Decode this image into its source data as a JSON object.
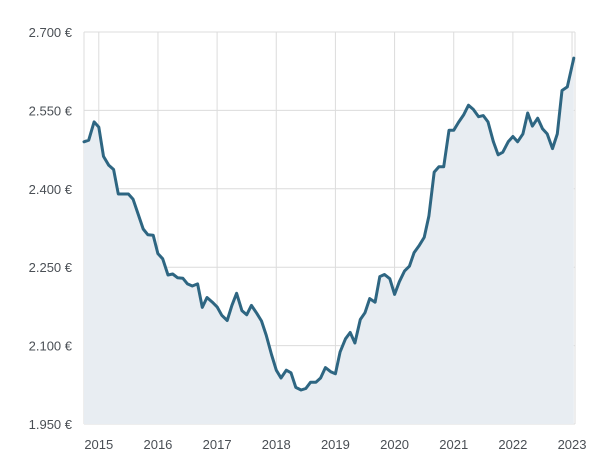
{
  "chart_data": {
    "type": "area",
    "title": "",
    "xlabel": "",
    "ylabel": "",
    "ylim": [
      1950,
      2700
    ],
    "xlim": [
      2014.75,
      2023.05
    ],
    "grid": true,
    "line_color": "#2e6682",
    "fill_color": "#e8edf2",
    "y_ticks": [
      {
        "value": 1950,
        "label": "1.950 €"
      },
      {
        "value": 2100,
        "label": "2.100 €"
      },
      {
        "value": 2250,
        "label": "2.250 €"
      },
      {
        "value": 2400,
        "label": "2.400 €"
      },
      {
        "value": 2550,
        "label": "2.550 €"
      },
      {
        "value": 2700,
        "label": "2.700 €"
      }
    ],
    "x_ticks": [
      {
        "value": 2015,
        "label": "2015"
      },
      {
        "value": 2016,
        "label": "2016"
      },
      {
        "value": 2017,
        "label": "2017"
      },
      {
        "value": 2018,
        "label": "2018"
      },
      {
        "value": 2019,
        "label": "2019"
      },
      {
        "value": 2020,
        "label": "2020"
      },
      {
        "value": 2021,
        "label": "2021"
      },
      {
        "value": 2022,
        "label": "2022"
      },
      {
        "value": 2023,
        "label": "2023"
      }
    ],
    "series": [
      {
        "points": [
          [
            2014.75,
            2490
          ],
          [
            2014.83,
            2493
          ],
          [
            2014.92,
            2528
          ],
          [
            2015.0,
            2518
          ],
          [
            2015.08,
            2462
          ],
          [
            2015.17,
            2445
          ],
          [
            2015.25,
            2437
          ],
          [
            2015.33,
            2390
          ],
          [
            2015.42,
            2390
          ],
          [
            2015.5,
            2390
          ],
          [
            2015.58,
            2380
          ],
          [
            2015.67,
            2350
          ],
          [
            2015.75,
            2323
          ],
          [
            2015.83,
            2312
          ],
          [
            2015.92,
            2311
          ],
          [
            2016.0,
            2276
          ],
          [
            2016.08,
            2266
          ],
          [
            2016.17,
            2235
          ],
          [
            2016.25,
            2237
          ],
          [
            2016.33,
            2230
          ],
          [
            2016.42,
            2229
          ],
          [
            2016.5,
            2218
          ],
          [
            2016.58,
            2214
          ],
          [
            2016.67,
            2218
          ],
          [
            2016.75,
            2173
          ],
          [
            2016.83,
            2192
          ],
          [
            2016.92,
            2183
          ],
          [
            2017.0,
            2174
          ],
          [
            2017.08,
            2158
          ],
          [
            2017.17,
            2148
          ],
          [
            2017.25,
            2177
          ],
          [
            2017.33,
            2200
          ],
          [
            2017.42,
            2167
          ],
          [
            2017.5,
            2159
          ],
          [
            2017.58,
            2177
          ],
          [
            2017.67,
            2162
          ],
          [
            2017.75,
            2147
          ],
          [
            2017.83,
            2120
          ],
          [
            2017.92,
            2083
          ],
          [
            2018.0,
            2053
          ],
          [
            2018.08,
            2038
          ],
          [
            2018.17,
            2053
          ],
          [
            2018.25,
            2048
          ],
          [
            2018.33,
            2020
          ],
          [
            2018.42,
            2015
          ],
          [
            2018.5,
            2018
          ],
          [
            2018.58,
            2030
          ],
          [
            2018.67,
            2030
          ],
          [
            2018.75,
            2038
          ],
          [
            2018.83,
            2058
          ],
          [
            2018.92,
            2050
          ],
          [
            2019.0,
            2046
          ],
          [
            2019.08,
            2088
          ],
          [
            2019.17,
            2113
          ],
          [
            2019.25,
            2125
          ],
          [
            2019.33,
            2105
          ],
          [
            2019.42,
            2150
          ],
          [
            2019.5,
            2163
          ],
          [
            2019.58,
            2190
          ],
          [
            2019.67,
            2183
          ],
          [
            2019.75,
            2232
          ],
          [
            2019.83,
            2236
          ],
          [
            2019.92,
            2228
          ],
          [
            2020.0,
            2198
          ],
          [
            2020.08,
            2222
          ],
          [
            2020.17,
            2243
          ],
          [
            2020.25,
            2252
          ],
          [
            2020.33,
            2278
          ],
          [
            2020.42,
            2292
          ],
          [
            2020.5,
            2307
          ],
          [
            2020.58,
            2348
          ],
          [
            2020.67,
            2432
          ],
          [
            2020.75,
            2442
          ],
          [
            2020.83,
            2442
          ],
          [
            2020.92,
            2512
          ],
          [
            2021.0,
            2512
          ],
          [
            2021.08,
            2527
          ],
          [
            2021.17,
            2542
          ],
          [
            2021.25,
            2560
          ],
          [
            2021.33,
            2552
          ],
          [
            2021.42,
            2538
          ],
          [
            2021.5,
            2540
          ],
          [
            2021.58,
            2528
          ],
          [
            2021.67,
            2490
          ],
          [
            2021.75,
            2465
          ],
          [
            2021.83,
            2470
          ],
          [
            2021.92,
            2490
          ],
          [
            2022.0,
            2500
          ],
          [
            2022.08,
            2490
          ],
          [
            2022.17,
            2505
          ],
          [
            2022.25,
            2545
          ],
          [
            2022.33,
            2520
          ],
          [
            2022.42,
            2535
          ],
          [
            2022.5,
            2515
          ],
          [
            2022.58,
            2505
          ],
          [
            2022.67,
            2477
          ],
          [
            2022.75,
            2505
          ],
          [
            2022.83,
            2588
          ],
          [
            2022.92,
            2595
          ],
          [
            2023.03,
            2650
          ]
        ]
      }
    ]
  }
}
